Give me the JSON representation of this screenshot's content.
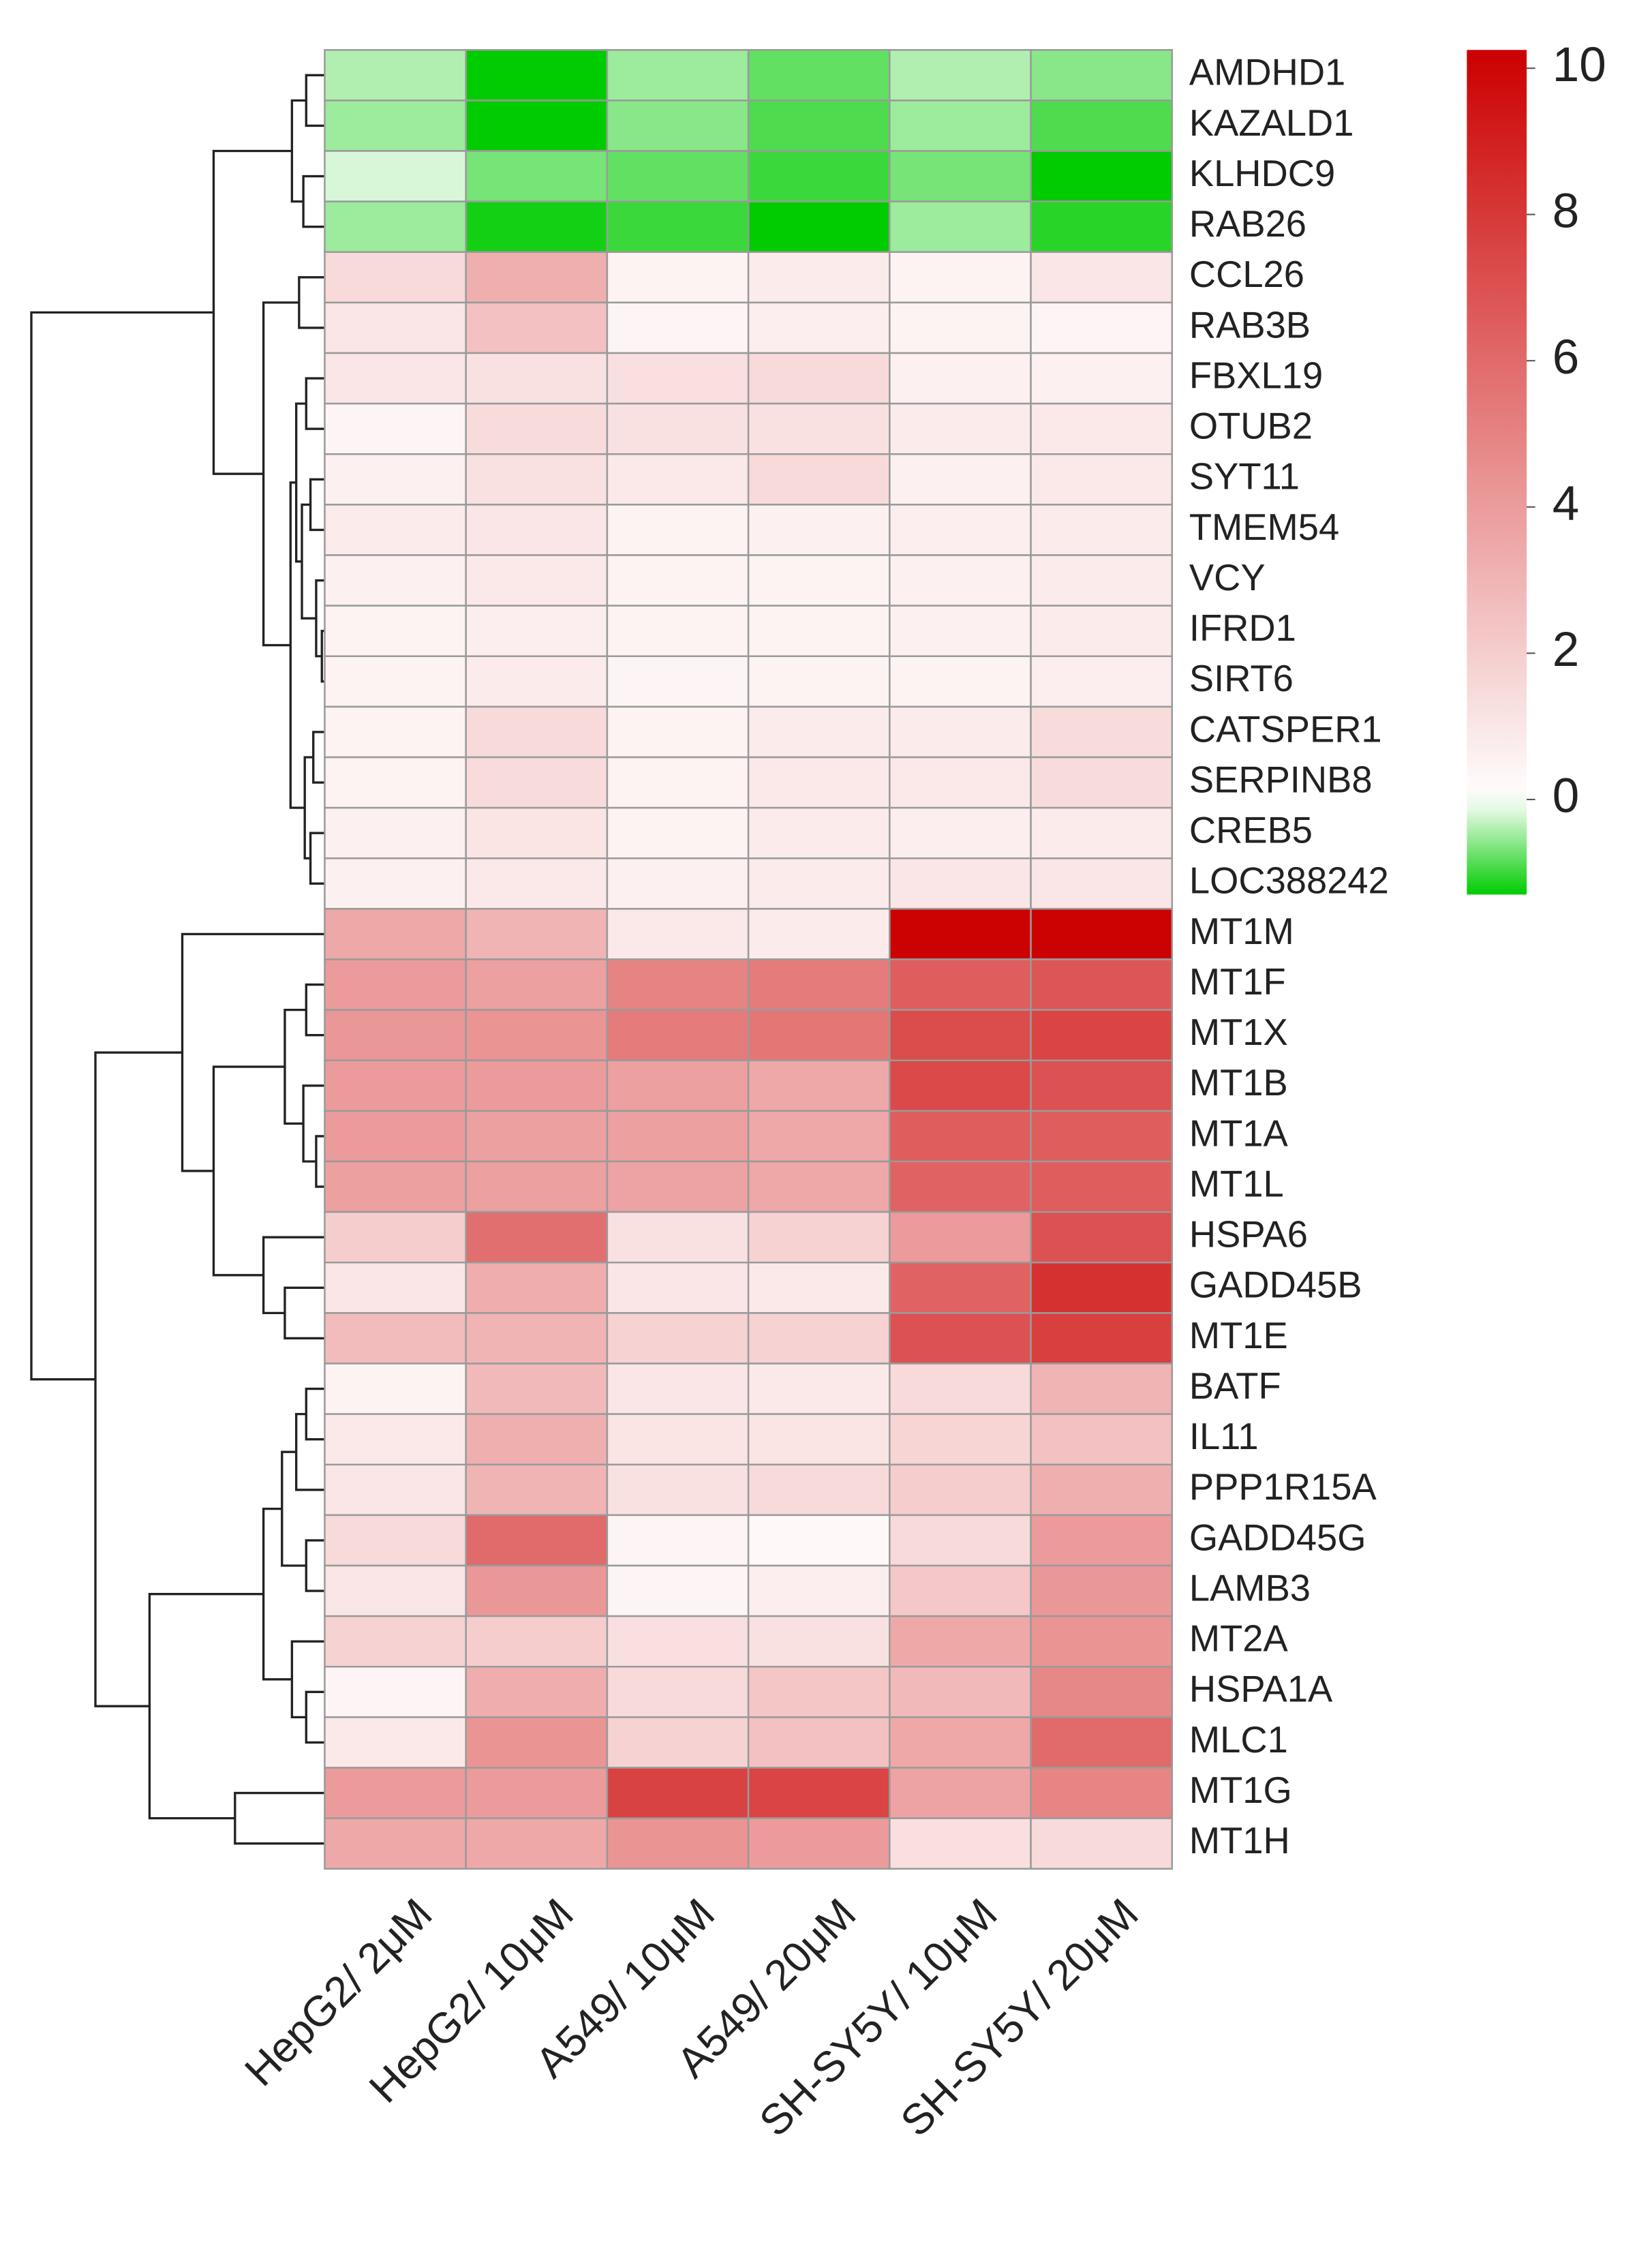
{
  "chart_data": {
    "type": "heatmap",
    "columns": [
      "HepG2/ 2μM",
      "HepG2/ 10μM",
      "A549/ 10μM",
      "A549/ 20μM",
      "SH-SY5Y/ 10μM",
      "SH-SY5Y/ 20μM"
    ],
    "rows": [
      "AMDHD1",
      "KAZALD1",
      "KLHDC9",
      "RAB26",
      "CCL26",
      "RAB3B",
      "FBXL19",
      "OTUB2",
      "SYT11",
      "TMEM54",
      "VCY",
      "IFRD1",
      "SIRT6",
      "CATSPER1",
      "SERPINB8",
      "CREB5",
      "LOC388242",
      "MT1M",
      "MT1F",
      "MT1X",
      "MT1B",
      "MT1A",
      "MT1L",
      "HSPA6",
      "GADD45B",
      "MT1E",
      "BATF",
      "IL11",
      "PPP1R15A",
      "GADD45G",
      "LAMB3",
      "MT2A",
      "HSPA1A",
      "MLC1",
      "MT1G",
      "MT1H"
    ],
    "values": [
      [
        -0.4,
        -1.3,
        -0.5,
        -0.8,
        -0.4,
        -0.6
      ],
      [
        -0.5,
        -1.3,
        -0.6,
        -0.9,
        -0.5,
        -0.9
      ],
      [
        -0.2,
        -0.7,
        -0.8,
        -1.0,
        -0.7,
        -1.3
      ],
      [
        -0.5,
        -1.2,
        -1.0,
        -1.3,
        -0.5,
        -1.1
      ],
      [
        1.5,
        3.2,
        0.5,
        0.8,
        0.5,
        1.0
      ],
      [
        1.0,
        2.5,
        0.4,
        0.7,
        0.5,
        0.4
      ],
      [
        1.0,
        1.2,
        1.3,
        1.5,
        0.6,
        0.6
      ],
      [
        0.4,
        1.4,
        1.2,
        1.2,
        0.8,
        0.9
      ],
      [
        0.6,
        1.2,
        0.9,
        1.5,
        0.6,
        0.9
      ],
      [
        0.8,
        1.0,
        0.5,
        0.6,
        0.7,
        0.8
      ],
      [
        0.6,
        0.9,
        0.5,
        0.5,
        0.6,
        0.8
      ],
      [
        0.5,
        0.7,
        0.5,
        0.5,
        0.6,
        0.8
      ],
      [
        0.5,
        0.8,
        0.4,
        0.5,
        0.5,
        0.7
      ],
      [
        0.5,
        1.5,
        0.5,
        0.8,
        0.8,
        1.4
      ],
      [
        0.5,
        1.4,
        0.5,
        0.9,
        0.9,
        1.4
      ],
      [
        0.6,
        1.1,
        0.5,
        0.8,
        0.7,
        0.8
      ],
      [
        0.6,
        0.9,
        0.6,
        0.8,
        1.0,
        1.0
      ],
      [
        3.5,
        3.0,
        0.9,
        0.8,
        10.2,
        10.2
      ],
      [
        4.0,
        3.8,
        5.0,
        5.3,
        6.5,
        6.8
      ],
      [
        4.2,
        4.3,
        5.3,
        5.5,
        7.2,
        7.5
      ],
      [
        4.0,
        4.0,
        3.8,
        3.5,
        7.3,
        7.0
      ],
      [
        4.0,
        3.8,
        3.8,
        3.5,
        6.5,
        6.5
      ],
      [
        3.8,
        3.8,
        3.7,
        3.5,
        6.3,
        6.5
      ],
      [
        2.0,
        5.8,
        1.2,
        1.8,
        4.0,
        7.0
      ],
      [
        1.0,
        3.3,
        1.0,
        0.9,
        6.3,
        8.3
      ],
      [
        2.7,
        3.0,
        1.8,
        1.8,
        7.0,
        7.7
      ],
      [
        0.5,
        2.8,
        1.0,
        0.9,
        1.5,
        3.0
      ],
      [
        0.9,
        3.2,
        1.1,
        1.1,
        1.7,
        2.5
      ],
      [
        1.0,
        3.0,
        1.2,
        1.5,
        2.0,
        3.2
      ],
      [
        1.5,
        6.0,
        0.4,
        0.3,
        1.5,
        4.0
      ],
      [
        1.0,
        4.2,
        0.4,
        0.7,
        2.2,
        4.2
      ],
      [
        1.8,
        2.0,
        1.3,
        1.2,
        3.5,
        4.3
      ],
      [
        0.4,
        3.3,
        1.5,
        2.3,
        2.8,
        4.8
      ],
      [
        0.9,
        4.3,
        1.8,
        2.5,
        3.5,
        6.0
      ],
      [
        4.0,
        4.0,
        7.6,
        7.5,
        3.7,
        4.9
      ],
      [
        3.5,
        3.5,
        4.3,
        4.0,
        1.3,
        1.5
      ]
    ],
    "zlim": [
      -1.3,
      10.25
    ],
    "zticks": [
      0,
      2,
      4,
      6,
      8,
      10
    ],
    "colorscale": [
      "#00cc00",
      "#ffffff",
      "#cc0000"
    ]
  }
}
